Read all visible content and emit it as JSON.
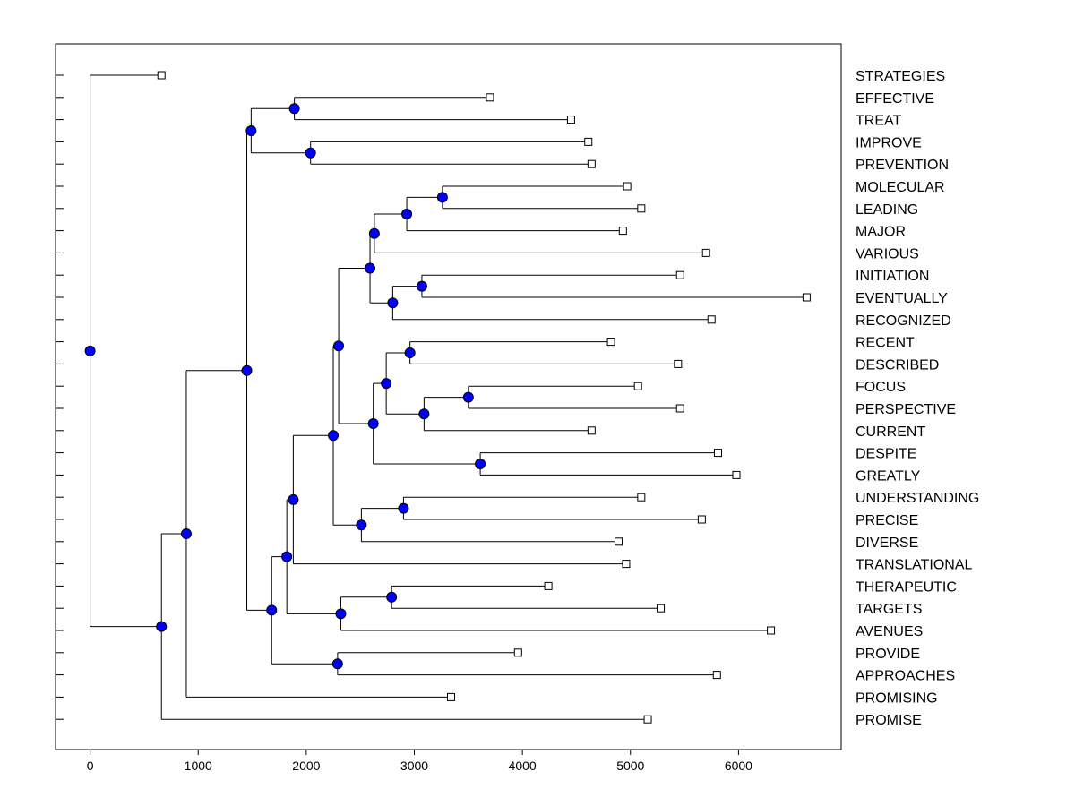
{
  "chart_data": {
    "type": "dendrogram",
    "title": "",
    "xlabel": "",
    "ylabel": "",
    "xlim": [
      -320,
      6950
    ],
    "x_ticks": [
      0,
      1000,
      2000,
      3000,
      4000,
      5000,
      6000
    ],
    "x_tick_labels": [
      "0",
      "1000",
      "2000",
      "3000",
      "4000",
      "5000",
      "6000"
    ],
    "node_color": "#0000ff",
    "leaves": [
      {
        "label": "STRATEGIES",
        "x": 660
      },
      {
        "label": "EFFECTIVE",
        "x": 3700
      },
      {
        "label": "TREAT",
        "x": 4450
      },
      {
        "label": "IMPROVE",
        "x": 4610
      },
      {
        "label": "PREVENTION",
        "x": 4640
      },
      {
        "label": "MOLECULAR",
        "x": 4970
      },
      {
        "label": "LEADING",
        "x": 5100
      },
      {
        "label": "MAJOR",
        "x": 4930
      },
      {
        "label": "VARIOUS",
        "x": 5700
      },
      {
        "label": "INITIATION",
        "x": 5460
      },
      {
        "label": "EVENTUALLY",
        "x": 6630
      },
      {
        "label": "RECOGNIZED",
        "x": 5750
      },
      {
        "label": "RECENT",
        "x": 4820
      },
      {
        "label": "DESCRIBED",
        "x": 5440
      },
      {
        "label": "FOCUS",
        "x": 5070
      },
      {
        "label": "PERSPECTIVE",
        "x": 5460
      },
      {
        "label": "CURRENT",
        "x": 4640
      },
      {
        "label": "DESPITE",
        "x": 5810
      },
      {
        "label": "GREATLY",
        "x": 5980
      },
      {
        "label": "UNDERSTANDING",
        "x": 5100
      },
      {
        "label": "PRECISE",
        "x": 5660
      },
      {
        "label": "DIVERSE",
        "x": 4890
      },
      {
        "label": "TRANSLATIONAL",
        "x": 4960
      },
      {
        "label": "THERAPEUTIC",
        "x": 4240
      },
      {
        "label": "TARGETS",
        "x": 5280
      },
      {
        "label": "AVENUES",
        "x": 6300
      },
      {
        "label": "PROVIDE",
        "x": 3960
      },
      {
        "label": "APPROACHES",
        "x": 5800
      },
      {
        "label": "PROMISING",
        "x": 3340
      },
      {
        "label": "PROMISE",
        "x": 5160
      }
    ],
    "merges": [
      {
        "id": "n1",
        "x": 1890,
        "children": [
          "L1",
          "L2"
        ]
      },
      {
        "id": "n2",
        "x": 2040,
        "children": [
          "L3",
          "L4"
        ]
      },
      {
        "id": "n3",
        "x": 1490,
        "children": [
          "n1",
          "n2"
        ]
      },
      {
        "id": "n4",
        "x": 3260,
        "children": [
          "L5",
          "L6"
        ]
      },
      {
        "id": "n5",
        "x": 2930,
        "children": [
          "n4",
          "L7"
        ]
      },
      {
        "id": "n6",
        "x": 2630,
        "children": [
          "n5",
          "L8"
        ]
      },
      {
        "id": "n7",
        "x": 3070,
        "children": [
          "L9",
          "L10"
        ]
      },
      {
        "id": "n8",
        "x": 2800,
        "children": [
          "n7",
          "L11"
        ]
      },
      {
        "id": "n9",
        "x": 2590,
        "children": [
          "n6",
          "n8"
        ]
      },
      {
        "id": "n10",
        "x": 2960,
        "children": [
          "L12",
          "L13"
        ]
      },
      {
        "id": "n11",
        "x": 3500,
        "children": [
          "L14",
          "L15"
        ]
      },
      {
        "id": "n12",
        "x": 3090,
        "children": [
          "n11",
          "L16"
        ]
      },
      {
        "id": "n13",
        "x": 2740,
        "children": [
          "n10",
          "n12"
        ]
      },
      {
        "id": "n14",
        "x": 3610,
        "children": [
          "L17",
          "L18"
        ]
      },
      {
        "id": "n15",
        "x": 2620,
        "children": [
          "n13",
          "n14"
        ]
      },
      {
        "id": "n16",
        "x": 2300,
        "children": [
          "n9",
          "n15"
        ]
      },
      {
        "id": "n17",
        "x": 2900,
        "children": [
          "L19",
          "L20"
        ]
      },
      {
        "id": "n18",
        "x": 2510,
        "children": [
          "n17",
          "L21"
        ]
      },
      {
        "id": "n19",
        "x": 2250,
        "children": [
          "n16",
          "n18"
        ]
      },
      {
        "id": "n20",
        "x": 1880,
        "children": [
          "n19",
          "L22"
        ]
      },
      {
        "id": "n21",
        "x": 2790,
        "children": [
          "L23",
          "L24"
        ]
      },
      {
        "id": "n22",
        "x": 2320,
        "children": [
          "n21",
          "L25"
        ]
      },
      {
        "id": "n23",
        "x": 1820,
        "children": [
          "n20",
          "n22"
        ]
      },
      {
        "id": "n24",
        "x": 2290,
        "children": [
          "L26",
          "L27"
        ]
      },
      {
        "id": "n25",
        "x": 1680,
        "children": [
          "n23",
          "n24"
        ]
      },
      {
        "id": "n26",
        "x": 1450,
        "children": [
          "n3",
          "n25"
        ]
      },
      {
        "id": "n27",
        "x": 890,
        "children": [
          "n26",
          "L28"
        ]
      },
      {
        "id": "n28",
        "x": 660,
        "children": [
          "n27",
          "L29"
        ]
      },
      {
        "id": "n29",
        "x": 0,
        "children": [
          "L0",
          "n28"
        ]
      }
    ]
  }
}
